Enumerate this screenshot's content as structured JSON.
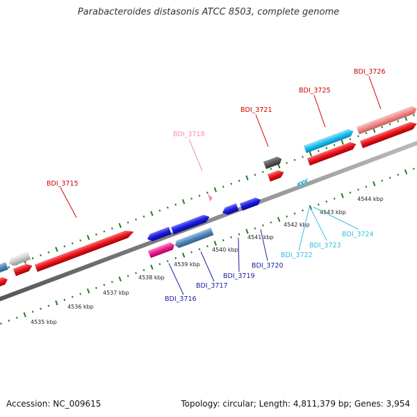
{
  "title": "Parabacteroides distasonis ATCC 8503, complete genome",
  "footer": {
    "accession": "Accession: NC_009615",
    "stats": "Topology: circular; Length: 4,811,379 bp; Genes: 3,954"
  },
  "colors": {
    "backbone": "#888888",
    "tick": "#1f7a1f",
    "forward_gene": "#e8141c",
    "reverse_gene": "#1a1ae0",
    "label_red": "#cc0000",
    "label_pink": "#f58fb0",
    "label_blue": "#1a1aa0",
    "label_cyan": "#33bde0"
  },
  "kbp_ticks": [
    "4535 kbp",
    "4536 kbp",
    "4537 kbp",
    "4538 kbp",
    "4539 kbp",
    "4540 kbp",
    "4541 kbp",
    "4542 kbp",
    "4543 kbp",
    "4544 kbp"
  ],
  "gene_labels": [
    {
      "id": "BDI_3715",
      "color": "red"
    },
    {
      "id": "BDI_3716",
      "color": "blue"
    },
    {
      "id": "BDI_3717",
      "color": "blue"
    },
    {
      "id": "BDI_3718",
      "color": "pink"
    },
    {
      "id": "BDI_3719",
      "color": "blue"
    },
    {
      "id": "BDI_3720",
      "color": "blue"
    },
    {
      "id": "BDI_3721",
      "color": "red"
    },
    {
      "id": "BDI_3722",
      "color": "cyan"
    },
    {
      "id": "BDI_3723",
      "color": "cyan"
    },
    {
      "id": "BDI_3724",
      "color": "cyan"
    },
    {
      "id": "BDI_3725",
      "color": "red"
    },
    {
      "id": "BDI_3726",
      "color": "red"
    }
  ]
}
